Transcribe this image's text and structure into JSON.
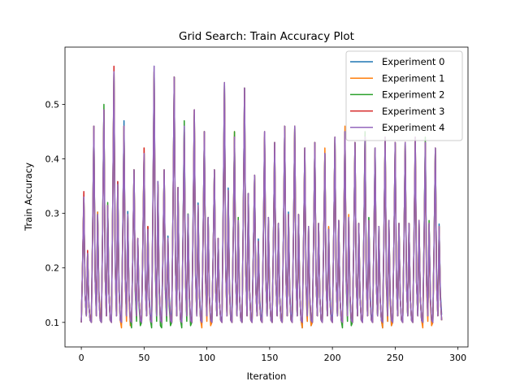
{
  "chart_data": {
    "type": "line",
    "title": "Grid Search: Train Accuracy Plot",
    "xlabel": "Iteration",
    "ylabel": "Train Accuracy",
    "xlim": [
      -13,
      308
    ],
    "ylim": [
      0.055,
      0.605
    ],
    "x_ticks": [
      0,
      50,
      100,
      150,
      200,
      250,
      300
    ],
    "y_ticks": [
      0.1,
      0.2,
      0.3,
      0.4,
      0.5
    ],
    "grid": false,
    "legend_position": "upper right",
    "n_points": 288,
    "cycle_length": 8,
    "series": [
      {
        "name": "Experiment 0",
        "color": "#1f77b4",
        "peaks": [
          0.33,
          0.46,
          0.49,
          0.56,
          0.47,
          0.38,
          0.41,
          0.57,
          0.38,
          0.55,
          0.46,
          0.49,
          0.45,
          0.38,
          0.54,
          0.44,
          0.53,
          0.37,
          0.45,
          0.43,
          0.46,
          0.46,
          0.42,
          0.43,
          0.41,
          0.44,
          0.45,
          0.43,
          0.44,
          0.42,
          0.44,
          0.43,
          0.43,
          0.44,
          0.43,
          0.42
        ],
        "troughs": [
          0.1,
          0.11,
          0.1,
          0.11,
          0.1,
          0.1,
          0.11,
          0.1,
          0.11,
          0.1,
          0.1,
          0.11,
          0.1,
          0.1,
          0.11,
          0.1,
          0.1,
          0.11,
          0.1,
          0.1,
          0.11,
          0.1,
          0.09,
          0.1,
          0.11,
          0.1,
          0.1,
          0.1,
          0.11,
          0.1,
          0.09,
          0.1,
          0.1,
          0.1,
          0.1,
          0.11
        ]
      },
      {
        "name": "Experiment 1",
        "color": "#ff7f0e",
        "peaks": [
          0.33,
          0.46,
          0.49,
          0.56,
          0.46,
          0.38,
          0.42,
          0.56,
          0.38,
          0.55,
          0.45,
          0.49,
          0.45,
          0.38,
          0.53,
          0.45,
          0.52,
          0.37,
          0.44,
          0.43,
          0.46,
          0.46,
          0.42,
          0.43,
          0.42,
          0.44,
          0.46,
          0.43,
          0.44,
          0.41,
          0.44,
          0.43,
          0.43,
          0.44,
          0.42,
          0.42
        ],
        "troughs": [
          0.1,
          0.11,
          0.1,
          0.1,
          0.09,
          0.1,
          0.1,
          0.1,
          0.1,
          0.1,
          0.1,
          0.1,
          0.09,
          0.1,
          0.1,
          0.1,
          0.1,
          0.1,
          0.1,
          0.1,
          0.1,
          0.1,
          0.09,
          0.1,
          0.1,
          0.1,
          0.1,
          0.1,
          0.1,
          0.1,
          0.09,
          0.1,
          0.1,
          0.1,
          0.09,
          0.1
        ]
      },
      {
        "name": "Experiment 2",
        "color": "#2ca02c",
        "peaks": [
          0.33,
          0.46,
          0.5,
          0.56,
          0.46,
          0.38,
          0.41,
          0.56,
          0.38,
          0.55,
          0.47,
          0.48,
          0.45,
          0.38,
          0.54,
          0.45,
          0.53,
          0.37,
          0.44,
          0.43,
          0.46,
          0.46,
          0.42,
          0.43,
          0.41,
          0.44,
          0.45,
          0.43,
          0.45,
          0.42,
          0.44,
          0.43,
          0.43,
          0.43,
          0.44,
          0.42
        ],
        "troughs": [
          0.1,
          0.1,
          0.1,
          0.1,
          0.1,
          0.09,
          0.1,
          0.09,
          0.09,
          0.1,
          0.09,
          0.1,
          0.1,
          0.1,
          0.1,
          0.1,
          0.1,
          0.1,
          0.1,
          0.1,
          0.1,
          0.1,
          0.1,
          0.1,
          0.1,
          0.1,
          0.09,
          0.1,
          0.1,
          0.1,
          0.1,
          0.1,
          0.1,
          0.1,
          0.1,
          0.1
        ]
      },
      {
        "name": "Experiment 3",
        "color": "#d62728",
        "peaks": [
          0.34,
          0.46,
          0.49,
          0.57,
          0.46,
          0.38,
          0.42,
          0.56,
          0.38,
          0.55,
          0.45,
          0.49,
          0.45,
          0.38,
          0.54,
          0.44,
          0.53,
          0.37,
          0.45,
          0.43,
          0.46,
          0.46,
          0.42,
          0.43,
          0.41,
          0.44,
          0.45,
          0.43,
          0.44,
          0.42,
          0.44,
          0.43,
          0.43,
          0.44,
          0.43,
          0.42
        ],
        "troughs": [
          0.1,
          0.1,
          0.1,
          0.1,
          0.1,
          0.1,
          0.1,
          0.1,
          0.1,
          0.1,
          0.1,
          0.1,
          0.1,
          0.1,
          0.1,
          0.1,
          0.1,
          0.1,
          0.1,
          0.1,
          0.1,
          0.1,
          0.1,
          0.1,
          0.1,
          0.1,
          0.1,
          0.1,
          0.1,
          0.1,
          0.1,
          0.1,
          0.1,
          0.1,
          0.1,
          0.1
        ]
      },
      {
        "name": "Experiment 4",
        "color": "#9467bd",
        "peaks": [
          0.33,
          0.46,
          0.49,
          0.56,
          0.46,
          0.38,
          0.41,
          0.57,
          0.38,
          0.55,
          0.46,
          0.49,
          0.45,
          0.38,
          0.54,
          0.44,
          0.53,
          0.37,
          0.45,
          0.43,
          0.46,
          0.46,
          0.42,
          0.43,
          0.41,
          0.44,
          0.45,
          0.43,
          0.44,
          0.42,
          0.44,
          0.43,
          0.43,
          0.44,
          0.43,
          0.42
        ],
        "troughs": [
          0.1,
          0.1,
          0.1,
          0.1,
          0.1,
          0.1,
          0.1,
          0.1,
          0.1,
          0.1,
          0.1,
          0.1,
          0.1,
          0.1,
          0.1,
          0.1,
          0.1,
          0.1,
          0.1,
          0.1,
          0.1,
          0.1,
          0.1,
          0.1,
          0.1,
          0.1,
          0.1,
          0.1,
          0.1,
          0.1,
          0.1,
          0.1,
          0.1,
          0.1,
          0.1,
          0.1
        ]
      }
    ]
  }
}
